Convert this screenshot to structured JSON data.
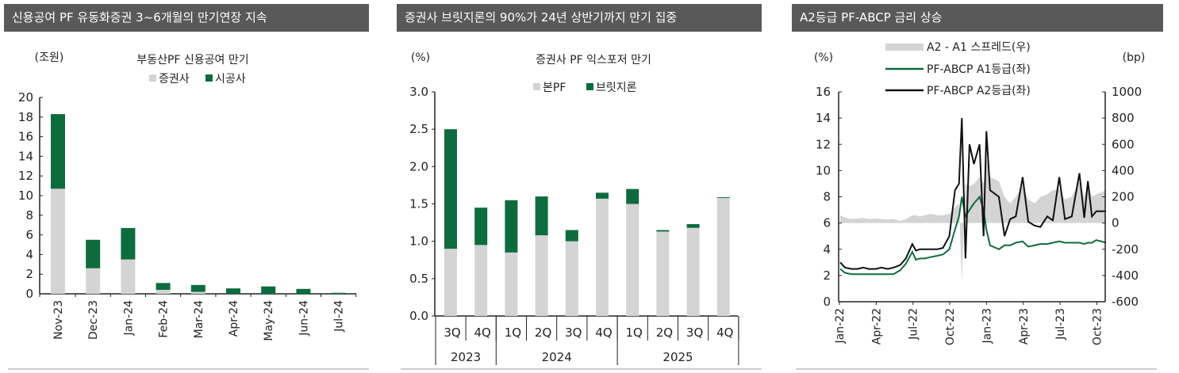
{
  "panels": [
    {
      "title": "신용공여 PF 유동화증권 3~6개월의 만기연장 지속"
    },
    {
      "title": "증권사 브릿지론의 90%가 24년 상반기까지 만기 집중"
    },
    {
      "title": "A2등급 PF-ABCP 금리 상승"
    }
  ],
  "colors": {
    "gray": "#d4d4d4",
    "green": "#0e6b3d",
    "black": "#111111",
    "title_bar": "#595959"
  },
  "chart_data": [
    {
      "type": "bar",
      "stacked": true,
      "title": "부동산PF 신용공여 만기",
      "ylabel": "(조원)",
      "ylim": [
        0,
        20
      ],
      "yticks": [
        0,
        2,
        4,
        6,
        8,
        10,
        12,
        14,
        16,
        18,
        20
      ],
      "categories": [
        "Nov-23",
        "Dec-23",
        "Jan-24",
        "Feb-24",
        "Mar-24",
        "Apr-24",
        "May-24",
        "Jun-24",
        "Jul-24"
      ],
      "legend": "top",
      "series": [
        {
          "name": "증권사",
          "color": "#d4d4d4",
          "values": [
            10.7,
            2.6,
            3.5,
            0.4,
            0.2,
            0,
            0,
            0,
            0
          ]
        },
        {
          "name": "시공사",
          "color": "#0e6b3d",
          "values": [
            7.6,
            2.9,
            3.2,
            0.7,
            0.7,
            0.55,
            0.75,
            0.5,
            0.1
          ]
        }
      ]
    },
    {
      "type": "bar",
      "stacked": true,
      "title": "증권사 PF 익스포저 만기",
      "ylabel": "(%)",
      "ylim": [
        0,
        3
      ],
      "yticks": [
        "0.0",
        "0.5",
        "1.0",
        "1.5",
        "2.0",
        "2.5",
        "3.0"
      ],
      "categories": [
        "3Q",
        "4Q",
        "1Q",
        "2Q",
        "3Q",
        "4Q",
        "1Q",
        "2Q",
        "3Q",
        "4Q"
      ],
      "groups": [
        {
          "label": "2023",
          "count": 2
        },
        {
          "label": "2024",
          "count": 4
        },
        {
          "label": "2025",
          "count": 4
        }
      ],
      "legend": "top",
      "series": [
        {
          "name": "본PF",
          "color": "#d4d4d4",
          "values": [
            0.9,
            0.95,
            0.85,
            1.08,
            1.0,
            1.57,
            1.5,
            1.13,
            1.18,
            1.58
          ]
        },
        {
          "name": "브릿지론",
          "color": "#0e6b3d",
          "values": [
            1.6,
            0.5,
            0.7,
            0.52,
            0.15,
            0.08,
            0.2,
            0.02,
            0.05,
            0.01
          ]
        }
      ]
    },
    {
      "type": "line",
      "ylabel_left": "(%)",
      "ylabel_right": "(bp)",
      "ylim_left": [
        0,
        16
      ],
      "ylim_right": [
        -600,
        1000
      ],
      "yticks_left": [
        0,
        2,
        4,
        6,
        8,
        10,
        12,
        14,
        16
      ],
      "yticks_right": [
        -600,
        -400,
        -200,
        0,
        200,
        400,
        600,
        800,
        1000
      ],
      "xticks": [
        "Jan-22",
        "Apr-22",
        "Jul-22",
        "Oct-22",
        "Jan-23",
        "Apr-23",
        "Jul-23",
        "Oct-23"
      ],
      "legend": "top",
      "x": [
        "2022-01-03",
        "2022-01-15",
        "2022-02-01",
        "2022-02-15",
        "2022-03-01",
        "2022-03-15",
        "2022-04-01",
        "2022-04-15",
        "2022-05-01",
        "2022-05-15",
        "2022-06-01",
        "2022-06-15",
        "2022-07-01",
        "2022-07-10",
        "2022-07-20",
        "2022-08-01",
        "2022-08-15",
        "2022-09-01",
        "2022-09-15",
        "2022-10-01",
        "2022-10-15",
        "2022-10-25",
        "2022-11-01",
        "2022-11-10",
        "2022-11-20",
        "2022-12-01",
        "2022-12-15",
        "2022-12-25",
        "2023-01-01",
        "2023-01-10",
        "2023-02-01",
        "2023-02-15",
        "2023-03-01",
        "2023-03-15",
        "2023-04-01",
        "2023-04-15",
        "2023-05-01",
        "2023-05-15",
        "2023-06-01",
        "2023-06-15",
        "2023-07-01",
        "2023-07-15",
        "2023-08-01",
        "2023-08-20",
        "2023-09-01",
        "2023-09-10",
        "2023-09-20",
        "2023-10-01",
        "2023-10-25"
      ],
      "series": [
        {
          "name": "A2 - A1 스프레드(우)",
          "axis": "right",
          "type": "area",
          "color": "#d4d4d4",
          "values": [
            60,
            40,
            30,
            35,
            40,
            30,
            35,
            30,
            25,
            30,
            15,
            30,
            60,
            60,
            50,
            60,
            70,
            60,
            60,
            70,
            120,
            150,
            -450,
            300,
            280,
            300,
            350,
            300,
            500,
            350,
            320,
            200,
            150,
            200,
            280,
            180,
            150,
            200,
            220,
            250,
            260,
            180,
            200,
            320,
            200,
            300,
            200,
            220,
            250
          ]
        },
        {
          "name": "PF-ABCP A1등급(좌)",
          "axis": "left",
          "color": "#0e6b3d",
          "values": [
            2.5,
            2.2,
            2.1,
            2.1,
            2.1,
            2.1,
            2.1,
            2.1,
            2.1,
            2.1,
            2.4,
            2.9,
            3.8,
            3.2,
            3.3,
            3.3,
            3.4,
            3.5,
            3.6,
            4.0,
            5.5,
            6.5,
            8.0,
            6.5,
            7.0,
            7.5,
            8.0,
            7.0,
            5.5,
            4.3,
            4.0,
            4.3,
            4.3,
            4.5,
            4.6,
            4.2,
            4.3,
            4.4,
            4.4,
            4.5,
            4.6,
            4.5,
            4.5,
            4.5,
            4.4,
            4.5,
            4.5,
            4.7,
            4.5
          ]
        },
        {
          "name": "PF-ABCP A2등급(좌)",
          "axis": "left",
          "color": "#111111",
          "values": [
            3.0,
            2.6,
            2.5,
            2.5,
            2.6,
            2.5,
            2.5,
            2.6,
            2.5,
            2.6,
            2.8,
            3.3,
            4.4,
            3.9,
            4.0,
            4.0,
            4.0,
            4.0,
            4.1,
            5.0,
            8.5,
            9.0,
            14.0,
            3.3,
            12.0,
            10.5,
            12.0,
            5.0,
            13.0,
            8.5,
            8.0,
            5.0,
            6.3,
            6.5,
            9.5,
            6.1,
            5.8,
            5.7,
            6.5,
            6.2,
            9.5,
            6.3,
            6.5,
            9.8,
            6.4,
            9.2,
            6.5,
            6.9,
            6.9
          ]
        }
      ]
    }
  ]
}
